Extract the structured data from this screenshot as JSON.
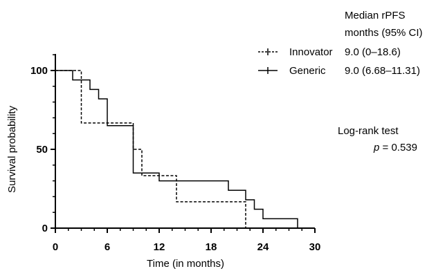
{
  "chart_data": {
    "type": "line",
    "step": true,
    "xlabel": "Time (in months)",
    "ylabel": "Survival probability",
    "xlim": [
      0,
      30
    ],
    "ylim": [
      0,
      100
    ],
    "xticks": [
      0,
      6,
      12,
      18,
      24,
      30
    ],
    "yticks": [
      0,
      50,
      100
    ],
    "grid": false,
    "legend_position": "top-right",
    "legend_header": [
      "Median rPFS",
      "months (95% CI)"
    ],
    "series": [
      {
        "name": "Innovator",
        "median_ci": "9.0 (0–18.6)",
        "line_style": "dashed",
        "color": "#000000",
        "x": [
          0,
          3,
          9,
          10,
          14,
          22
        ],
        "y": [
          100,
          66.7,
          50,
          33.3,
          16.7,
          0
        ]
      },
      {
        "name": "Generic",
        "median_ci": "9.0 (6.68–11.31)",
        "line_style": "solid",
        "color": "#000000",
        "x": [
          0,
          2,
          4,
          5,
          6,
          9,
          12,
          20,
          22,
          23,
          24,
          28
        ],
        "y": [
          100,
          94,
          88,
          82,
          65,
          35,
          30,
          24,
          18,
          12,
          6,
          0
        ]
      }
    ],
    "annotations": {
      "test_name": "Log-rank test",
      "p_symbol": "p",
      "p_value": "= 0.539"
    }
  }
}
